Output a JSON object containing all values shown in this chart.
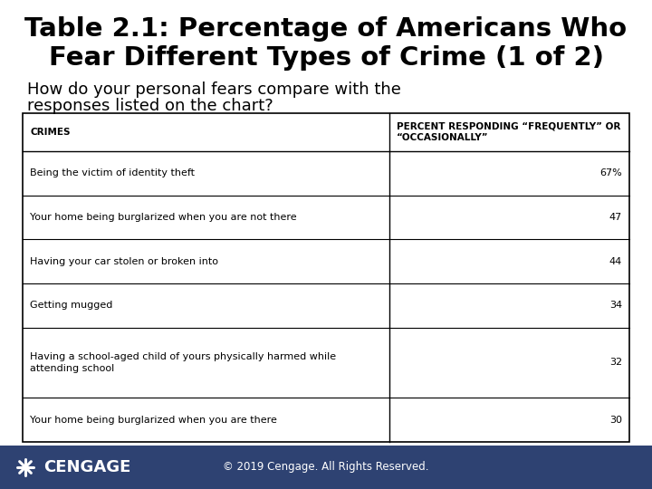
{
  "title_line1": "Table 2.1: Percentage of Americans Who",
  "title_line2": "Fear Different Types of Crime (1 of 2)",
  "subtitle_line1": "How do your personal fears compare with the",
  "subtitle_line2": "responses listed on the chart?",
  "col1_header": "CRIMES",
  "col2_header": "PERCENT RESPONDING “FREQUENTLY” OR\n“OCCASIONALLY”",
  "rows": [
    {
      "crime": "Being the victim of identity theft",
      "percent": "67%",
      "multiline": false
    },
    {
      "crime": "Your home being burglarized when you are not there",
      "percent": "47",
      "multiline": false
    },
    {
      "crime": "Having your car stolen or broken into",
      "percent": "44",
      "multiline": false
    },
    {
      "crime": "Getting mugged",
      "percent": "34",
      "multiline": false
    },
    {
      "crime": "Having a school-aged child of yours physically harmed while\nattending school",
      "percent": "32",
      "multiline": true
    },
    {
      "crime": "Your home being burglarized when you are there",
      "percent": "30",
      "multiline": false
    }
  ],
  "bg_color": "#ffffff",
  "footer_bg": "#2e4272",
  "footer_text": "© 2019 Cengage. All Rights Reserved.",
  "footer_text_color": "#ffffff",
  "cengage_text": "CENGAGE",
  "cengage_text_color": "#ffffff",
  "title_fontsize": 21,
  "subtitle_fontsize": 13,
  "header_fontsize": 7.5,
  "row_fontsize": 8,
  "table_border_color": "#000000"
}
